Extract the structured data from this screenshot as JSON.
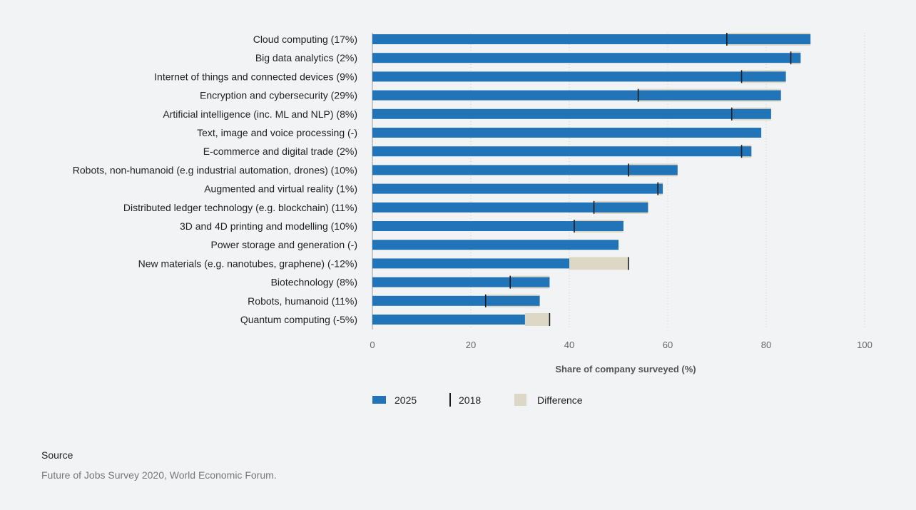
{
  "chart_data": {
    "type": "bar",
    "orientation": "horizontal",
    "categories": [
      "Cloud computing (17%)",
      "Big data analytics (2%)",
      "Internet of things and connected devices (9%)",
      "Encryption and cybersecurity (29%)",
      "Artificial intelligence (inc. ML and NLP) (8%)",
      "Text, image and voice processing (-)",
      "E-commerce and digital trade (2%)",
      "Robots, non-humanoid (e.g industrial automation, drones) (10%)",
      "Augmented and virtual reality (1%)",
      "Distributed ledger technology (e.g. blockchain) (11%)",
      "3D and 4D printing and modelling (10%)",
      "Power storage and generation (-)",
      "New materials (e.g. nanotubes, graphene) (-12%)",
      "Biotechnology (8%)",
      "Robots, humanoid (11%)",
      "Quantum computing (-5%)"
    ],
    "series": [
      {
        "name": "2025",
        "values": [
          89,
          87,
          84,
          83,
          81,
          79,
          77,
          62,
          59,
          56,
          51,
          50,
          40,
          36,
          34,
          31
        ]
      },
      {
        "name": "2018",
        "values": [
          72,
          85,
          75,
          54,
          73,
          null,
          75,
          52,
          58,
          45,
          41,
          null,
          52,
          28,
          23,
          36
        ]
      }
    ],
    "difference_label": "Difference",
    "xlabel": "Share of company surveyed (%)",
    "xlim": [
      0,
      100
    ],
    "xticks": [
      0,
      20,
      40,
      60,
      80,
      100
    ],
    "grid": "vertical-dotted",
    "legend_position": "bottom",
    "colors": {
      "bar2025": "#2274b8",
      "marker2018": "#1a1a1a",
      "difference": "#ddd8c6",
      "grid": "#c8c8c8"
    }
  },
  "source": {
    "title": "Source",
    "text": "Future of Jobs Survey 2020, World Economic Forum."
  }
}
